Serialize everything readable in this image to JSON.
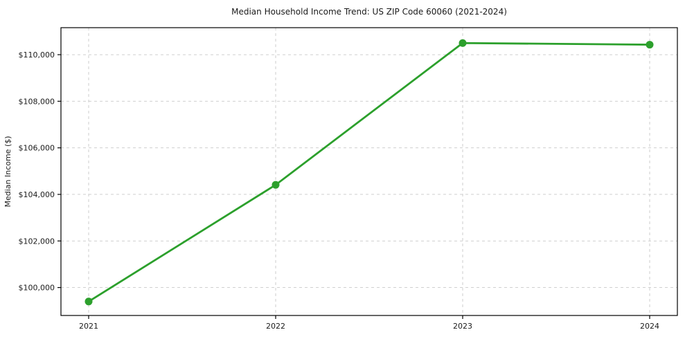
{
  "chart_data": {
    "type": "line",
    "title": "Median Household Income Trend: US ZIP Code 60060 (2021-2024)",
    "xlabel": "",
    "ylabel": "Median Income ($)",
    "x": [
      2021,
      2022,
      2023,
      2024
    ],
    "x_tick_labels": [
      "2021",
      "2022",
      "2023",
      "2024"
    ],
    "series": [
      {
        "name": "Median Household Income",
        "values": [
          99400,
          104410,
          110500,
          110430
        ]
      }
    ],
    "y_ticks": [
      100000,
      102000,
      104000,
      106000,
      108000,
      110000
    ],
    "y_tick_labels": [
      "$100,000",
      "$102,000",
      "$104,000",
      "$106,000",
      "$108,000",
      "$110,000"
    ],
    "ylim": [
      98800,
      111160
    ],
    "grid": true,
    "grid_style": "dashed",
    "legend_position": "none",
    "colors": {
      "line": "#2ca02c",
      "marker": "#2ca02c",
      "grid": "#c9c9c9",
      "spine": "#000000",
      "text": "#1a1a1a",
      "background": "#ffffff"
    }
  }
}
